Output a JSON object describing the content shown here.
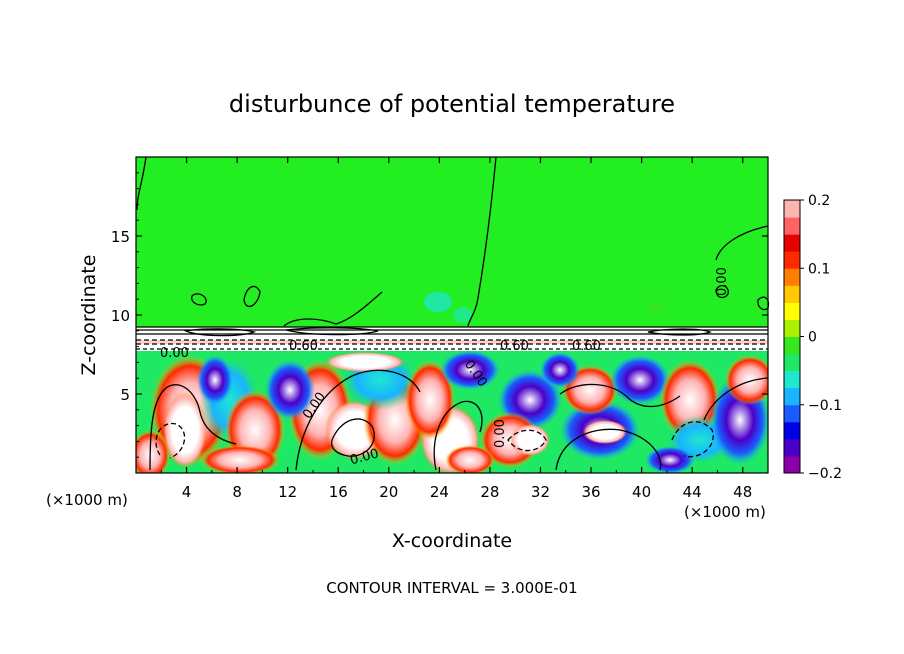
{
  "chart_data": {
    "type": "heatmap",
    "title": "disturbunce of potential temperature",
    "xlabel": "X-coordinate",
    "ylabel": "Z-coordinate",
    "x_unit_left": "(×1000 m)",
    "x_unit_right": "(×1000 m)",
    "xlim": [
      0,
      50
    ],
    "ylim": [
      0,
      20
    ],
    "x_ticks": [
      4,
      8,
      12,
      16,
      20,
      24,
      28,
      32,
      36,
      40,
      44,
      48
    ],
    "x_tick_labels": [
      "4",
      "8",
      "12",
      "16",
      "20",
      "24",
      "28",
      "32",
      "36",
      "40",
      "44",
      "48"
    ],
    "y_ticks": [
      5,
      10,
      15
    ],
    "y_tick_labels": [
      "5",
      "10",
      "15"
    ],
    "colorbar": {
      "range": [
        -0.2,
        0.2
      ],
      "ticks": [
        0.2,
        0.1,
        0,
        -0.1,
        -0.2
      ],
      "tick_labels": [
        "0.2",
        "0.1",
        "0",
        "−0.1",
        "−0.2"
      ]
    },
    "contour_labels": [
      "0.60",
      "0.00",
      "0.60",
      "0.00",
      "0.60",
      "0.00",
      "0.00",
      "0.00",
      "0.00"
    ],
    "contour_interval_text": "CONTOUR INTERVAL = 3.000E-01",
    "layers": [
      {
        "name": "upper uniform layer",
        "z_range": [
          9.3,
          20
        ],
        "value": 0.02
      },
      {
        "name": "interface stratified band",
        "z_range": [
          7.8,
          9.3
        ],
        "value": 0.6
      },
      {
        "name": "lower turbulent eddies",
        "z_range": [
          0,
          7.8
        ],
        "value_range": [
          -0.2,
          0.2
        ]
      }
    ]
  },
  "colors": {
    "upper_green": "#22ee22",
    "colormap": [
      "#8b00a8",
      "#4b00c8",
      "#0000e6",
      "#1a5cff",
      "#18b4ff",
      "#20e6d0",
      "#1ee864",
      "#36e61e",
      "#aaf000",
      "#ffff00",
      "#ffc800",
      "#ff8000",
      "#ff2a00",
      "#e60000",
      "#ff6464",
      "#ffb4b4"
    ]
  }
}
